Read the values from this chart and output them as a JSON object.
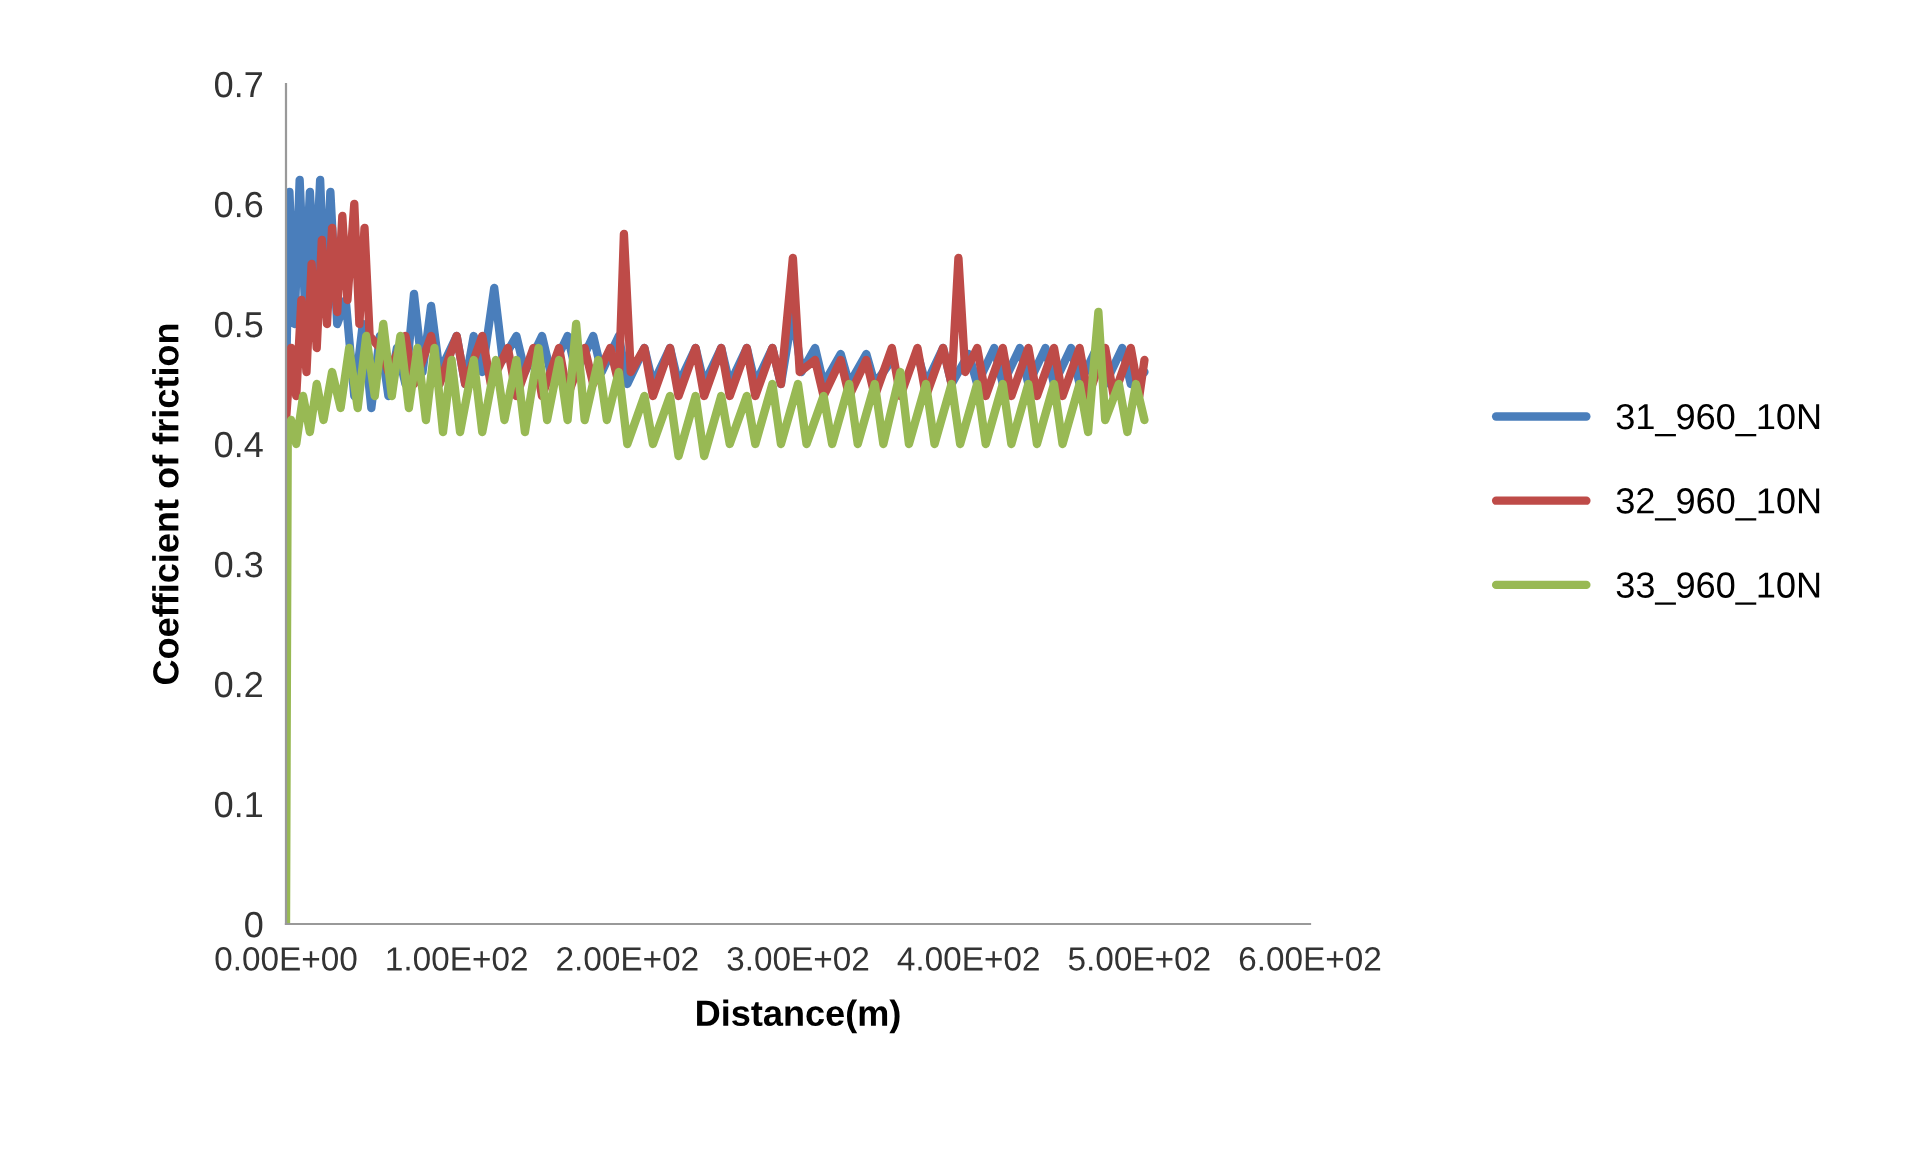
{
  "chart_data": {
    "type": "line",
    "xlabel": "Distance(m)",
    "ylabel": "Coefficient of friction",
    "xlim": [
      0,
      600
    ],
    "xticks": [
      {
        "value": 0,
        "label": "0.00E+00"
      },
      {
        "value": 100,
        "label": "1.00E+02"
      },
      {
        "value": 200,
        "label": "2.00E+02"
      },
      {
        "value": 300,
        "label": "3.00E+02"
      },
      {
        "value": 400,
        "label": "4.00E+02"
      },
      {
        "value": 500,
        "label": "5.00E+02"
      },
      {
        "value": 600,
        "label": "6.00E+02"
      }
    ],
    "ylim": [
      0,
      0.7
    ],
    "yticks": [
      {
        "value": 0,
        "label": "0"
      },
      0.1,
      0.2,
      0.3,
      0.4,
      0.5,
      0.6,
      0.7
    ],
    "grid": false,
    "legend": "right",
    "marker": "none",
    "line_style": "solid",
    "series": [
      {
        "name": "31_960_10N",
        "color": "#4a7ebb",
        "x": [
          0,
          2,
          5,
          8,
          11,
          14,
          17,
          20,
          23,
          26,
          30,
          35,
          40,
          45,
          50,
          55,
          60,
          65,
          70,
          75,
          80,
          85,
          90,
          100,
          105,
          110,
          115,
          122,
          127,
          135,
          140,
          150,
          155,
          165,
          170,
          180,
          185,
          195,
          200,
          210,
          215,
          225,
          230,
          240,
          245,
          255,
          260,
          270,
          275,
          285,
          290,
          297,
          302,
          310,
          315,
          325,
          330,
          340,
          345,
          355,
          360,
          370,
          375,
          385,
          390,
          400,
          405,
          415,
          420,
          430,
          435,
          445,
          450,
          460,
          465,
          475,
          480,
          490,
          495,
          503
        ],
        "values": [
          0.45,
          0.61,
          0.5,
          0.62,
          0.52,
          0.61,
          0.53,
          0.62,
          0.51,
          0.61,
          0.5,
          0.52,
          0.44,
          0.5,
          0.43,
          0.49,
          0.44,
          0.48,
          0.45,
          0.525,
          0.46,
          0.515,
          0.46,
          0.49,
          0.45,
          0.49,
          0.46,
          0.53,
          0.47,
          0.49,
          0.46,
          0.49,
          0.46,
          0.49,
          0.46,
          0.49,
          0.46,
          0.49,
          0.45,
          0.48,
          0.45,
          0.48,
          0.45,
          0.48,
          0.45,
          0.48,
          0.45,
          0.48,
          0.45,
          0.48,
          0.45,
          0.51,
          0.46,
          0.48,
          0.45,
          0.475,
          0.45,
          0.475,
          0.45,
          0.47,
          null,
          0.475,
          0.45,
          0.48,
          0.45,
          0.475,
          0.45,
          0.48,
          0.45,
          0.48,
          0.45,
          0.48,
          0.45,
          0.48,
          0.45,
          0.48,
          0.45,
          0.48,
          0.45,
          0.46
        ]
      },
      {
        "name": "32_960_10N",
        "color": "#be4b48",
        "x": [
          0,
          3,
          6,
          9,
          12,
          15,
          18,
          21,
          24,
          27,
          30,
          33,
          36,
          40,
          43,
          46,
          49,
          55,
          60,
          70,
          75,
          85,
          90,
          100,
          105,
          115,
          120,
          130,
          135,
          145,
          150,
          160,
          165,
          175,
          180,
          190,
          195,
          198,
          202,
          210,
          215,
          225,
          230,
          240,
          245,
          255,
          260,
          270,
          275,
          285,
          290,
          297,
          301,
          310,
          315,
          325,
          330,
          340,
          345,
          355,
          360,
          370,
          375,
          385,
          390,
          394,
          398,
          405,
          410,
          420,
          425,
          435,
          440,
          450,
          455,
          465,
          470,
          480,
          485,
          495,
          500,
          503
        ],
        "values": [
          0.42,
          0.48,
          0.44,
          0.52,
          0.46,
          0.55,
          0.48,
          0.57,
          0.5,
          0.58,
          0.51,
          0.59,
          0.52,
          0.6,
          0.5,
          0.58,
          0.49,
          0.48,
          0.46,
          0.49,
          0.45,
          0.49,
          0.45,
          0.49,
          0.45,
          0.49,
          0.45,
          0.48,
          0.44,
          0.48,
          0.44,
          0.48,
          0.44,
          0.48,
          0.45,
          0.48,
          0.45,
          0.575,
          0.46,
          0.48,
          0.44,
          0.48,
          0.44,
          0.48,
          0.44,
          0.48,
          0.44,
          0.48,
          0.44,
          0.48,
          0.45,
          0.555,
          0.46,
          0.47,
          0.44,
          0.47,
          0.44,
          0.47,
          0.44,
          0.48,
          0.44,
          0.48,
          0.44,
          0.48,
          0.45,
          0.555,
          0.46,
          0.48,
          0.44,
          0.48,
          0.44,
          0.48,
          0.44,
          0.48,
          0.44,
          0.48,
          0.44,
          0.48,
          0.44,
          0.48,
          0.44,
          0.47
        ]
      },
      {
        "name": "33_960_10N",
        "color": "#98b954",
        "x": [
          0,
          1,
          3,
          6,
          10,
          14,
          18,
          22,
          27,
          32,
          37,
          42,
          47,
          52,
          57,
          62,
          67,
          72,
          77,
          82,
          87,
          92,
          97,
          102,
          110,
          115,
          123,
          128,
          135,
          140,
          148,
          153,
          160,
          165,
          170,
          175,
          183,
          188,
          195,
          200,
          210,
          215,
          225,
          230,
          240,
          245,
          255,
          260,
          270,
          275,
          285,
          290,
          300,
          305,
          315,
          320,
          330,
          335,
          345,
          350,
          360,
          365,
          375,
          380,
          390,
          395,
          405,
          410,
          420,
          425,
          435,
          440,
          450,
          455,
          465,
          470,
          476,
          480,
          488,
          493,
          498,
          503
        ],
        "values": [
          0,
          0.4,
          0.42,
          0.4,
          0.44,
          0.41,
          0.45,
          0.42,
          0.46,
          0.43,
          0.48,
          0.43,
          0.49,
          0.44,
          0.5,
          0.44,
          0.49,
          0.43,
          0.48,
          0.42,
          0.48,
          0.41,
          0.47,
          0.41,
          0.47,
          0.41,
          0.47,
          0.42,
          0.47,
          0.41,
          0.48,
          0.42,
          0.47,
          0.42,
          0.5,
          0.42,
          0.47,
          0.42,
          0.46,
          0.4,
          0.44,
          0.4,
          0.44,
          0.39,
          0.44,
          0.39,
          0.44,
          0.4,
          0.44,
          0.4,
          0.45,
          0.4,
          0.45,
          0.4,
          0.44,
          0.4,
          0.45,
          0.4,
          0.45,
          0.4,
          0.46,
          0.4,
          0.45,
          0.4,
          0.45,
          0.4,
          0.45,
          0.4,
          0.45,
          0.4,
          0.45,
          0.4,
          0.45,
          0.4,
          0.45,
          0.41,
          0.51,
          0.42,
          0.45,
          0.41,
          0.45,
          0.42
        ]
      }
    ]
  }
}
